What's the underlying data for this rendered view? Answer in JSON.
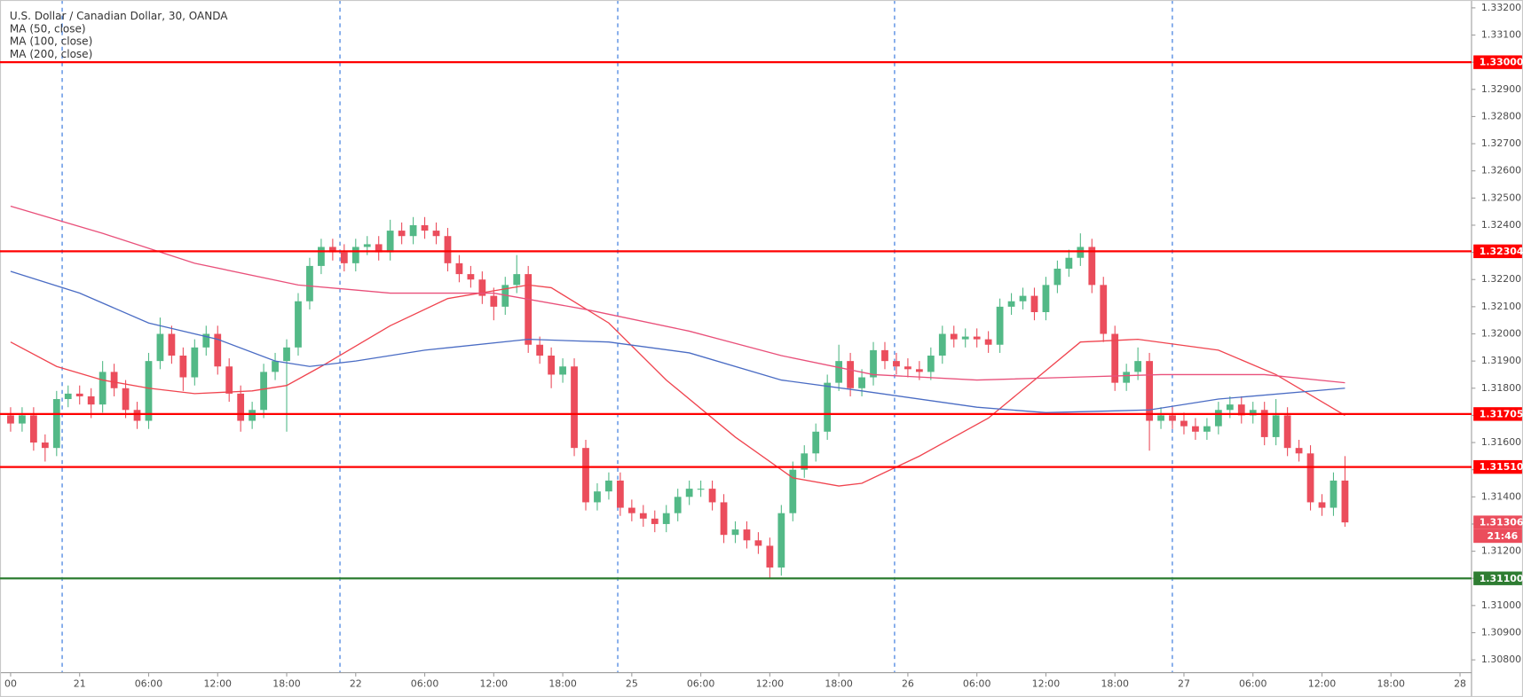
{
  "chart_data": {
    "type": "candlestick",
    "title": "U.S. Dollar / Canadian Dollar, 30, OANDA",
    "up_color": "#53b987",
    "down_color": "#eb4d5c",
    "x": [
      -6,
      -5,
      -4,
      -3,
      -2,
      -1,
      0,
      1,
      2,
      3,
      4,
      5,
      6,
      7,
      8,
      9,
      10,
      11,
      12,
      13,
      14,
      15,
      16,
      17,
      18,
      19,
      20,
      21,
      22,
      23,
      24,
      25,
      26,
      27,
      28,
      29,
      30,
      31,
      32,
      33,
      34,
      35,
      36,
      37,
      38,
      39,
      40,
      41,
      42,
      43,
      44,
      45,
      46,
      47,
      48,
      49,
      50,
      51,
      52,
      53,
      54,
      55,
      56,
      57,
      58,
      59,
      60,
      61,
      62,
      63,
      64,
      65,
      66,
      67,
      68,
      69,
      70,
      71,
      72,
      73,
      74,
      75,
      76,
      77,
      78,
      79,
      80,
      81,
      82,
      83,
      84,
      85,
      86,
      87,
      88,
      89,
      90,
      91,
      92,
      93,
      94,
      95,
      96,
      97,
      98,
      99,
      100,
      101,
      102,
      103,
      104,
      105,
      106,
      107,
      108,
      109,
      110
    ],
    "open": [
      1.317,
      1.3167,
      1.317,
      1.316,
      1.3158,
      1.3176,
      1.3178,
      1.3177,
      1.3174,
      1.3186,
      1.318,
      1.3172,
      1.3168,
      1.319,
      1.32,
      1.3192,
      1.3184,
      1.3195,
      1.32,
      1.3188,
      1.3178,
      1.3168,
      1.3172,
      1.3186,
      1.319,
      1.3195,
      1.3212,
      1.3225,
      1.3232,
      1.323,
      1.3226,
      1.3232,
      1.3233,
      1.323,
      1.3238,
      1.3236,
      1.324,
      1.3238,
      1.3236,
      1.3226,
      1.3222,
      1.322,
      1.3214,
      1.321,
      1.3218,
      1.3222,
      1.3196,
      1.3192,
      1.3185,
      1.3188,
      1.3158,
      1.3138,
      1.3142,
      1.3146,
      1.3136,
      1.3134,
      1.3132,
      1.313,
      1.3134,
      1.314,
      1.3143,
      1.3143,
      1.3138,
      1.3126,
      1.3128,
      1.3124,
      1.3122,
      1.3114,
      1.3134,
      1.315,
      1.3156,
      1.3164,
      1.3182,
      1.319,
      1.318,
      1.3184,
      1.3194,
      1.319,
      1.3188,
      1.3187,
      1.3186,
      1.3192,
      1.32,
      1.3198,
      1.3199,
      1.3198,
      1.3196,
      1.321,
      1.3212,
      1.3214,
      1.3208,
      1.3218,
      1.3224,
      1.3228,
      1.3232,
      1.3218,
      1.32,
      1.3182,
      1.3186,
      1.319,
      1.3168,
      1.317,
      1.3168,
      1.3166,
      1.3164,
      1.3166,
      1.3172,
      1.3174,
      1.317,
      1.3172,
      1.3162,
      1.317,
      1.3158,
      1.3156,
      1.3138,
      1.3136,
      1.3146
    ],
    "high": [
      1.3173,
      1.3173,
      1.3173,
      1.3163,
      1.3179,
      1.3181,
      1.3181,
      1.318,
      1.319,
      1.3189,
      1.3183,
      1.3175,
      1.3193,
      1.3206,
      1.3203,
      1.3195,
      1.3198,
      1.3203,
      1.3203,
      1.3191,
      1.3181,
      1.3175,
      1.3189,
      1.3193,
      1.3198,
      1.3215,
      1.3228,
      1.3235,
      1.3235,
      1.3233,
      1.3235,
      1.3236,
      1.3236,
      1.3242,
      1.3241,
      1.3243,
      1.3243,
      1.3241,
      1.3239,
      1.3229,
      1.3225,
      1.3223,
      1.3217,
      1.3221,
      1.3229,
      1.3225,
      1.3199,
      1.3195,
      1.3191,
      1.3191,
      1.3161,
      1.3145,
      1.3149,
      1.3149,
      1.3139,
      1.3137,
      1.3135,
      1.3137,
      1.3143,
      1.3146,
      1.3146,
      1.3146,
      1.3141,
      1.3131,
      1.3131,
      1.3127,
      1.3125,
      1.3137,
      1.3153,
      1.3159,
      1.3167,
      1.3185,
      1.3196,
      1.3193,
      1.3187,
      1.3197,
      1.3197,
      1.3193,
      1.3191,
      1.319,
      1.3195,
      1.3203,
      1.3203,
      1.3202,
      1.3202,
      1.3201,
      1.3213,
      1.3215,
      1.3217,
      1.3217,
      1.3221,
      1.3227,
      1.3231,
      1.3237,
      1.3235,
      1.3221,
      1.3203,
      1.3189,
      1.3195,
      1.3193,
      1.3173,
      1.3173,
      1.3171,
      1.3169,
      1.3169,
      1.3175,
      1.3177,
      1.3177,
      1.3175,
      1.3175,
      1.3176,
      1.3173,
      1.3161,
      1.3159,
      1.3141,
      1.3149,
      1.3155
    ],
    "low": [
      1.3164,
      1.3164,
      1.3157,
      1.3153,
      1.3155,
      1.3173,
      1.3174,
      1.3169,
      1.3171,
      1.3177,
      1.3169,
      1.3165,
      1.3165,
      1.3187,
      1.3189,
      1.3179,
      1.3181,
      1.3192,
      1.3185,
      1.3175,
      1.3164,
      1.3165,
      1.3169,
      1.3183,
      1.3164,
      1.3192,
      1.3209,
      1.3222,
      1.3227,
      1.3223,
      1.3223,
      1.3229,
      1.3227,
      1.3227,
      1.3233,
      1.3233,
      1.3235,
      1.3233,
      1.3223,
      1.3219,
      1.3217,
      1.3211,
      1.3205,
      1.3207,
      1.3215,
      1.3193,
      1.3189,
      1.318,
      1.3182,
      1.3155,
      1.3135,
      1.3135,
      1.3139,
      1.3133,
      1.3131,
      1.3129,
      1.3127,
      1.3127,
      1.3131,
      1.3137,
      1.314,
      1.3135,
      1.3123,
      1.3123,
      1.3121,
      1.3119,
      1.311,
      1.3111,
      1.3131,
      1.3147,
      1.3153,
      1.3161,
      1.3179,
      1.3177,
      1.3177,
      1.3181,
      1.3187,
      1.3185,
      1.3184,
      1.3183,
      1.3183,
      1.3189,
      1.3195,
      1.3195,
      1.3195,
      1.3193,
      1.3193,
      1.3207,
      1.3209,
      1.3205,
      1.3205,
      1.3215,
      1.3221,
      1.3225,
      1.3215,
      1.3197,
      1.3179,
      1.3179,
      1.3183,
      1.3157,
      1.3165,
      1.3165,
      1.3163,
      1.3161,
      1.3161,
      1.3163,
      1.3169,
      1.3167,
      1.3167,
      1.3159,
      1.3159,
      1.3155,
      1.3153,
      1.3135,
      1.3133,
      1.3133,
      1.3129
    ],
    "close": [
      1.3167,
      1.317,
      1.316,
      1.3158,
      1.3176,
      1.3178,
      1.3177,
      1.3174,
      1.3186,
      1.318,
      1.3172,
      1.3168,
      1.319,
      1.32,
      1.3192,
      1.3184,
      1.3195,
      1.32,
      1.3188,
      1.3178,
      1.3168,
      1.3172,
      1.3186,
      1.319,
      1.3195,
      1.3212,
      1.3225,
      1.3232,
      1.323,
      1.3226,
      1.3232,
      1.3233,
      1.323,
      1.3238,
      1.3236,
      1.324,
      1.3238,
      1.3236,
      1.3226,
      1.3222,
      1.322,
      1.3214,
      1.321,
      1.3218,
      1.3222,
      1.3196,
      1.3192,
      1.3185,
      1.3188,
      1.3158,
      1.3138,
      1.3142,
      1.3146,
      1.3136,
      1.3134,
      1.3132,
      1.313,
      1.3134,
      1.314,
      1.3143,
      1.3143,
      1.3138,
      1.3126,
      1.3128,
      1.3124,
      1.3122,
      1.3114,
      1.3134,
      1.315,
      1.3156,
      1.3164,
      1.3182,
      1.319,
      1.318,
      1.3184,
      1.3194,
      1.319,
      1.3188,
      1.3187,
      1.3186,
      1.3192,
      1.32,
      1.3198,
      1.3199,
      1.3198,
      1.3196,
      1.321,
      1.3212,
      1.3214,
      1.3208,
      1.3218,
      1.3224,
      1.3228,
      1.3232,
      1.3218,
      1.32,
      1.3182,
      1.3186,
      1.319,
      1.3168,
      1.317,
      1.3168,
      1.3166,
      1.3164,
      1.3166,
      1.3172,
      1.3174,
      1.317,
      1.3172,
      1.3162,
      1.317,
      1.3158,
      1.3156,
      1.3138,
      1.3136,
      1.3146,
      1.31306
    ],
    "series": [
      {
        "name": "MA (50, close)",
        "color": "#f0444f",
        "x": [
          -6,
          -2,
          2,
          6,
          10,
          15,
          18,
          21,
          27,
          32,
          39,
          41,
          46,
          51,
          57,
          62,
          66,
          68,
          73,
          79,
          83,
          87,
          92,
          99,
          104,
          110
        ],
        "values": [
          1.3197,
          1.3188,
          1.3183,
          1.318,
          1.3178,
          1.3179,
          1.3181,
          1.3188,
          1.3203,
          1.3213,
          1.3218,
          1.3217,
          1.3204,
          1.3183,
          1.3162,
          1.3147,
          1.3144,
          1.3145,
          1.3155,
          1.3169,
          1.3183,
          1.3197,
          1.3198,
          1.3194,
          1.3185,
          1.317
        ]
      },
      {
        "name": "MA (100, close)",
        "color": "#4a6cc4",
        "x": [
          -6,
          0,
          6,
          12,
          17,
          20,
          24,
          30,
          39,
          46,
          53,
          61,
          68,
          78,
          84,
          93,
          99,
          110
        ],
        "values": [
          1.3223,
          1.3215,
          1.3204,
          1.3198,
          1.319,
          1.3188,
          1.319,
          1.3194,
          1.3198,
          1.3197,
          1.3193,
          1.3183,
          1.3179,
          1.3173,
          1.3171,
          1.3172,
          1.3176,
          1.318
        ]
      },
      {
        "name": "MA (200, close)",
        "color": "#e9507a",
        "x": [
          -6,
          2,
          10,
          19,
          27,
          36,
          44,
          53,
          61,
          69,
          78,
          86,
          94,
          103,
          110
        ],
        "values": [
          1.3247,
          1.3237,
          1.3226,
          1.3218,
          1.3215,
          1.3215,
          1.3209,
          1.3201,
          1.3192,
          1.3185,
          1.3183,
          1.3184,
          1.3185,
          1.3185,
          1.3182
        ]
      }
    ],
    "levels": [
      {
        "value": 1.33,
        "label": "1.33000",
        "color": "#ff0000"
      },
      {
        "value": 1.32304,
        "label": "1.32304",
        "color": "#ff0000"
      },
      {
        "value": 1.31705,
        "label": "1.31705",
        "color": "#ff0000"
      },
      {
        "value": 1.3151,
        "label": "1.31510",
        "color": "#ff0000"
      },
      {
        "value": 1.311,
        "label": "1.31100",
        "color": "#2e7d32"
      }
    ],
    "last_price": 1.31306,
    "countdown": "21:46",
    "xlim": [
      -6.5,
      121
    ],
    "xticks": [
      {
        "value": -6,
        "label": "00"
      },
      {
        "value": 0,
        "label": "21"
      },
      {
        "value": 6,
        "label": "06:00"
      },
      {
        "value": 12,
        "label": "12:00"
      },
      {
        "value": 18,
        "label": "18:00"
      },
      {
        "value": 24,
        "label": "22"
      },
      {
        "value": 30,
        "label": "06:00"
      },
      {
        "value": 36,
        "label": "12:00"
      },
      {
        "value": 42,
        "label": "18:00"
      },
      {
        "value": 48,
        "label": "25"
      },
      {
        "value": 54,
        "label": "06:00"
      },
      {
        "value": 60,
        "label": "12:00"
      },
      {
        "value": 66,
        "label": "18:00"
      },
      {
        "value": 72,
        "label": "26"
      },
      {
        "value": 78,
        "label": "06:00"
      },
      {
        "value": 84,
        "label": "12:00"
      },
      {
        "value": 90,
        "label": "18:00"
      },
      {
        "value": 96,
        "label": "27"
      },
      {
        "value": 102,
        "label": "06:00"
      },
      {
        "value": 108,
        "label": "12:00"
      },
      {
        "value": 114,
        "label": "18:00"
      },
      {
        "value": 120,
        "label": "28"
      }
    ],
    "ylim": [
      1.30753,
      1.33229
    ],
    "yticks": [
      {
        "value": 1.308,
        "label": "1.30800"
      },
      {
        "value": 1.309,
        "label": "1.30900"
      },
      {
        "value": 1.31,
        "label": "1.31000"
      },
      {
        "value": 1.311,
        "label": "1.31100"
      },
      {
        "value": 1.312,
        "label": "1.31200"
      },
      {
        "value": 1.313,
        "label": "1.31300"
      },
      {
        "value": 1.314,
        "label": "1.31400"
      },
      {
        "value": 1.315,
        "label": "1.31500"
      },
      {
        "value": 1.316,
        "label": "1.31600"
      },
      {
        "value": 1.317,
        "label": "1.31700"
      },
      {
        "value": 1.318,
        "label": "1.31800"
      },
      {
        "value": 1.319,
        "label": "1.31900"
      },
      {
        "value": 1.32,
        "label": "1.32000"
      },
      {
        "value": 1.321,
        "label": "1.32100"
      },
      {
        "value": 1.322,
        "label": "1.32200"
      },
      {
        "value": 1.323,
        "label": "1.32300"
      },
      {
        "value": 1.324,
        "label": "1.32400"
      },
      {
        "value": 1.325,
        "label": "1.32500"
      },
      {
        "value": 1.326,
        "label": "1.32600"
      },
      {
        "value": 1.327,
        "label": "1.32700"
      },
      {
        "value": 1.328,
        "label": "1.32800"
      },
      {
        "value": 1.329,
        "label": "1.32900"
      },
      {
        "value": 1.33,
        "label": "1.33000"
      },
      {
        "value": 1.331,
        "label": "1.33100"
      },
      {
        "value": 1.332,
        "label": "1.33200"
      }
    ]
  }
}
